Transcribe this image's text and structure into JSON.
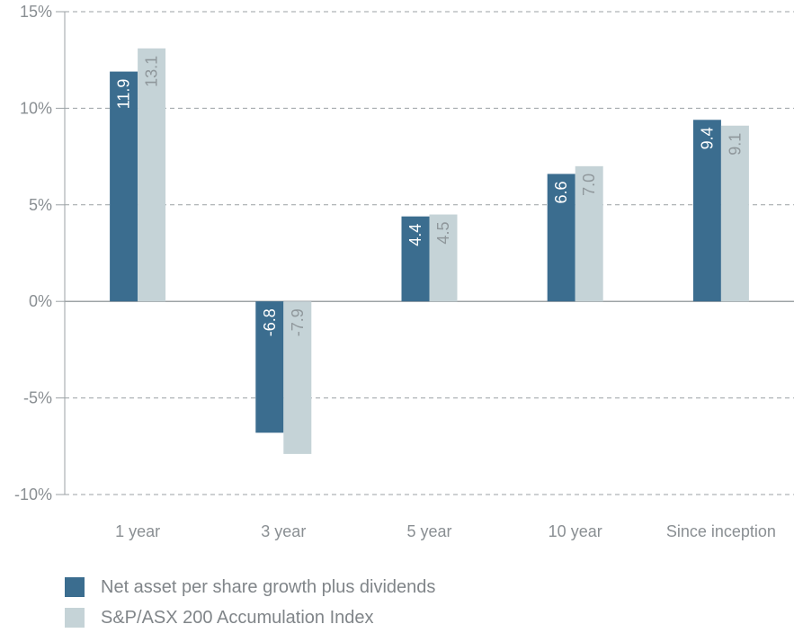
{
  "chart_data": {
    "type": "bar",
    "categories": [
      "1 year",
      "3 year",
      "5 year",
      "10 year",
      "Since inception"
    ],
    "series": [
      {
        "name": "Net asset per share growth plus dividends",
        "values": [
          11.9,
          -6.8,
          4.4,
          6.6,
          9.4
        ],
        "labels": [
          "11.9",
          "-6.8",
          "4.4",
          "6.6",
          "9.4"
        ],
        "color": "#3b6d8f",
        "label_color": "#ffffff"
      },
      {
        "name": "S&P/ASX 200 Accumulation Index",
        "values": [
          13.1,
          -7.9,
          4.5,
          7.0,
          9.1
        ],
        "labels": [
          "13.1",
          "-7.9",
          "4.5",
          "7.0",
          "9.1"
        ],
        "color": "#c5d3d7",
        "label_color": "#8f979b"
      }
    ],
    "yticks": [
      15,
      10,
      5,
      0,
      -5,
      -10
    ],
    "ytick_labels": [
      "15%",
      "10%",
      "5%",
      "0%",
      "-5%",
      "-10%"
    ],
    "ylim": [
      -10,
      15
    ],
    "grid": "dashed horizontal",
    "legend_position": "bottom-left"
  }
}
